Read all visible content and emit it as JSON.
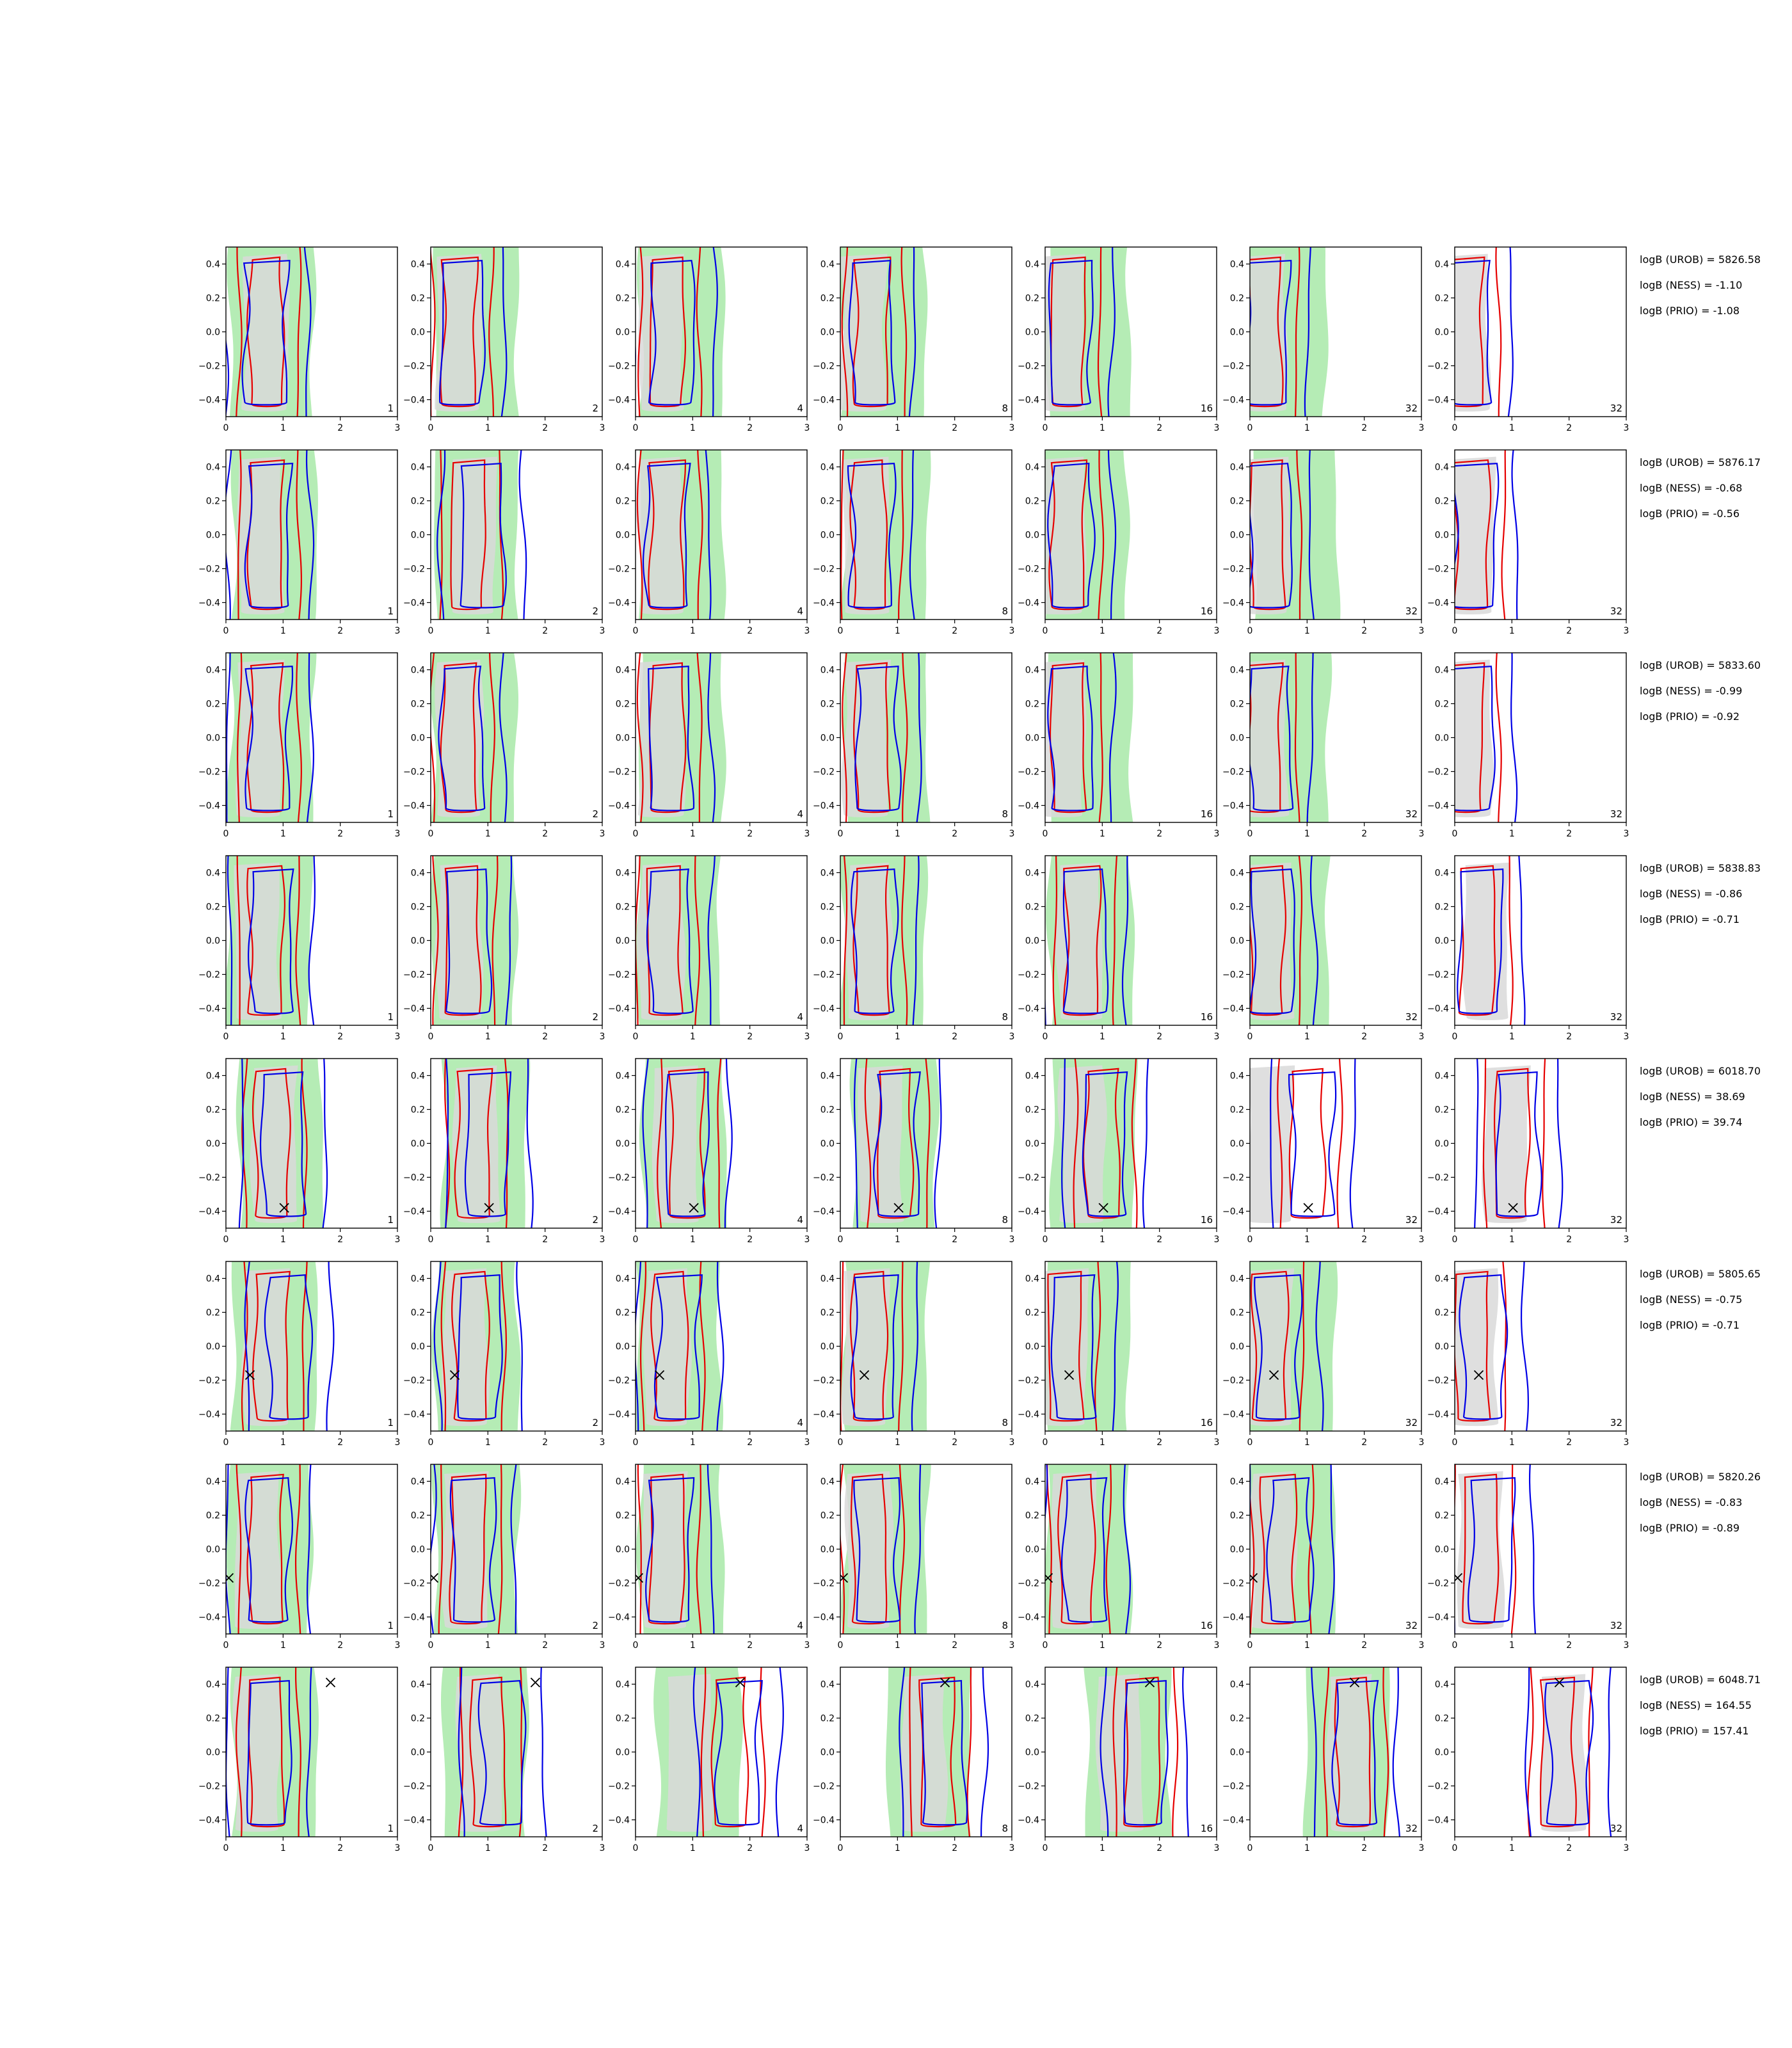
{
  "chart_data": {
    "type": "contour-grid",
    "title": "",
    "xlim": [
      0,
      3
    ],
    "ylim": [
      -0.5,
      0.5
    ],
    "xticks": [
      "0",
      "1",
      "2",
      "3"
    ],
    "yticks": [
      "−0.4",
      "−0.2",
      "0.0",
      "0.2",
      "0.4"
    ],
    "grid": false,
    "colors": {
      "filled_region_a": "#b5ecb5",
      "filled_region_b": "#d9d9d9",
      "red_contour": "#e60000",
      "blue_contour": "#0000e6",
      "marker": "#000000"
    },
    "panel_count_labels": [
      "1",
      "2",
      "4",
      "8",
      "16",
      "32",
      "32"
    ],
    "rows": [
      {
        "logB": [
          "logB (UROB) = 5826.58",
          "logB (NESS) = -1.10",
          "logB (PRIO) = -1.08"
        ],
        "marker": null,
        "red_center_x": [
          0.75,
          0.55,
          0.6,
          0.6,
          0.45,
          0.3,
          0.25
        ],
        "blue_center_x": [
          0.7,
          0.55,
          0.65,
          0.55,
          0.45,
          0.3,
          0.25
        ],
        "green_center_x": [
          0.8,
          0.8,
          0.8,
          0.75,
          0.75,
          0.6,
          null
        ],
        "gray_center_x": [
          0.7,
          0.5,
          0.45,
          0.4,
          0.3,
          0.25,
          0.2
        ]
      },
      {
        "logB": [
          "logB (UROB) = 5876.17",
          "logB (NESS) = -0.68",
          "logB (PRIO) = -0.56"
        ],
        "marker": null,
        "red_center_x": [
          0.75,
          0.7,
          0.6,
          0.55,
          0.45,
          0.35,
          0.35
        ],
        "blue_center_x": [
          0.75,
          0.9,
          0.55,
          0.55,
          0.45,
          0.35,
          0.35
        ],
        "green_center_x": [
          0.85,
          0.8,
          0.8,
          0.8,
          0.7,
          0.8,
          null
        ],
        "gray_center_x": [
          0.6,
          0.75,
          0.45,
          0.45,
          0.3,
          0.3,
          0.3
        ]
      },
      {
        "logB": [
          "logB (UROB) = 5833.60",
          "logB (NESS) = -0.99",
          "logB (PRIO) = -0.92"
        ],
        "marker": null,
        "red_center_x": [
          0.75,
          0.55,
          0.6,
          0.6,
          0.45,
          0.3,
          0.25
        ],
        "blue_center_x": [
          0.75,
          0.55,
          0.6,
          0.65,
          0.45,
          0.35,
          0.3
        ],
        "green_center_x": [
          0.8,
          0.75,
          0.8,
          0.8,
          0.8,
          0.65,
          null
        ],
        "gray_center_x": [
          0.6,
          0.5,
          0.45,
          0.45,
          0.3,
          0.25,
          0.25
        ]
      },
      {
        "logB": [
          "logB (UROB) = 5838.83",
          "logB (NESS) = -0.86",
          "logB (PRIO) = -0.71"
        ],
        "marker": null,
        "red_center_x": [
          0.75,
          0.6,
          0.55,
          0.6,
          0.7,
          0.35,
          0.45
        ],
        "blue_center_x": [
          0.8,
          0.65,
          0.6,
          0.6,
          0.7,
          0.4,
          0.45
        ],
        "green_center_x": [
          0.75,
          0.75,
          0.75,
          0.75,
          0.8,
          0.65,
          null
        ],
        "gray_center_x": [
          0.55,
          0.5,
          0.45,
          0.5,
          0.6,
          0.35,
          0.55
        ]
      },
      {
        "logB": [
          "logB (UROB) = 6018.70",
          "logB (NESS) = 38.69",
          "logB (PRIO) = 39.74"
        ],
        "marker": [
          1.02,
          -0.38
        ],
        "red_center_x": [
          0.85,
          0.8,
          0.95,
          1.0,
          1.05,
          1.05,
          1.05
        ],
        "blue_center_x": [
          1.0,
          1.0,
          0.9,
          1.0,
          1.05,
          1.1,
          1.1
        ],
        "green_center_x": [
          0.95,
          0.95,
          0.85,
          0.95,
          0.85,
          null,
          null
        ],
        "gray_center_x": [
          0.85,
          0.8,
          0.7,
          0.7,
          0.65,
          0.35,
          0.9
        ]
      },
      {
        "logB": [
          "logB (UROB) = 5805.65",
          "logB (NESS) = -0.75",
          "logB (PRIO) = -0.71"
        ],
        "marker": [
          0.42,
          -0.17
        ],
        "red_center_x": [
          0.85,
          0.75,
          0.65,
          0.55,
          0.4,
          0.4,
          0.35
        ],
        "blue_center_x": [
          1.1,
          0.85,
          0.75,
          0.6,
          0.5,
          0.5,
          0.5
        ],
        "green_center_x": [
          0.85,
          0.8,
          0.75,
          0.8,
          0.75,
          0.75,
          null
        ],
        "gray_center_x": [
          0.7,
          0.6,
          0.55,
          0.45,
          0.35,
          0.35,
          0.35
        ]
      },
      {
        "logB": [
          "logB (UROB) = 5820.26",
          "logB (NESS) = -0.83",
          "logB (PRIO) = -0.89"
        ],
        "marker": [
          0.05,
          -0.17
        ],
        "red_center_x": [
          0.75,
          0.7,
          0.6,
          0.55,
          0.6,
          0.55,
          0.5
        ],
        "blue_center_x": [
          0.75,
          0.75,
          0.6,
          0.65,
          0.7,
          0.7,
          0.65
        ],
        "green_center_x": [
          0.75,
          0.8,
          0.8,
          0.8,
          0.75,
          0.75,
          null
        ],
        "gray_center_x": [
          0.55,
          0.6,
          0.5,
          0.5,
          0.5,
          0.4,
          0.45
        ]
      },
      {
        "logB": [
          "logB (UROB) = 6048.71",
          "logB (NESS) = 164.55",
          "logB (PRIO) = 157.41"
        ],
        "marker": [
          1.83,
          0.41
        ],
        "red_center_x": [
          0.75,
          1.05,
          1.7,
          1.75,
          1.75,
          1.85,
          1.85
        ],
        "blue_center_x": [
          0.75,
          1.25,
          1.8,
          1.8,
          1.75,
          1.85,
          2.0
        ],
        "green_center_x": [
          0.85,
          0.95,
          1.1,
          1.55,
          1.45,
          1.7,
          null
        ],
        "gray_center_x": [
          0.55,
          0.85,
          0.95,
          1.45,
          1.3,
          1.75,
          1.9
        ]
      }
    ]
  }
}
